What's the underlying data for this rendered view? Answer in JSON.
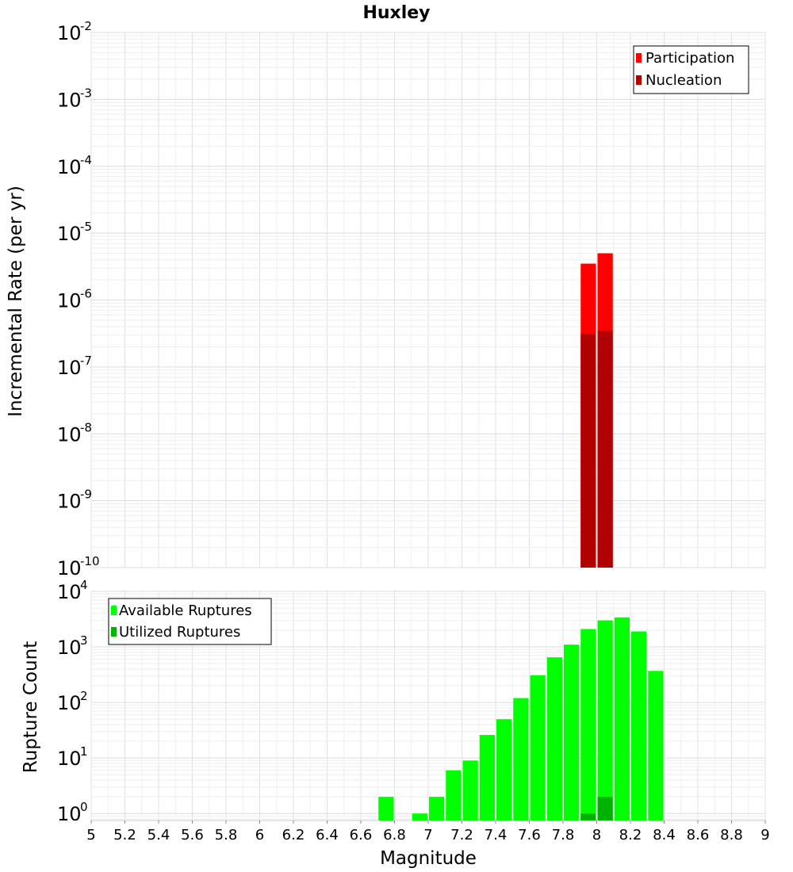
{
  "chart_data": [
    {
      "type": "bar",
      "panel": "top",
      "title": "Huxley",
      "xlabel": "",
      "ylabel": "Incremental Rate (per yr)",
      "yscale": "log",
      "ylim": [
        1e-10,
        0.01
      ],
      "xlim": [
        5,
        9
      ],
      "y_tick_exponents": [
        "-10",
        "-9",
        "-8",
        "-7",
        "-6",
        "-5",
        "-4",
        "-3",
        "-2"
      ],
      "grid": true,
      "legend_position": "top-right",
      "bar_width": 0.1,
      "series": [
        {
          "name": "Participation",
          "color": "#ff0000",
          "points": [
            {
              "x": 7.95,
              "y": 3.5e-06
            },
            {
              "x": 8.05,
              "y": 5e-06
            }
          ]
        },
        {
          "name": "Nucleation",
          "color": "#b00000",
          "points": [
            {
              "x": 7.95,
              "y": 3.1e-07
            },
            {
              "x": 8.05,
              "y": 3.5e-07
            }
          ]
        }
      ]
    },
    {
      "type": "bar",
      "panel": "bottom",
      "xlabel": "Magnitude",
      "ylabel": "Rupture Count",
      "yscale": "log",
      "ylim": [
        0.75,
        10000
      ],
      "xlim": [
        5,
        9
      ],
      "x_ticks": [
        "5",
        "5.2",
        "5.4",
        "5.6",
        "5.8",
        "6",
        "6.2",
        "6.4",
        "6.6",
        "6.8",
        "7",
        "7.2",
        "7.4",
        "7.6",
        "7.8",
        "8",
        "8.2",
        "8.4",
        "8.6",
        "8.8",
        "9"
      ],
      "y_tick_exponents": [
        "0",
        "1",
        "2",
        "3",
        "4"
      ],
      "grid": true,
      "legend_position": "top-left",
      "bar_width": 0.1,
      "series": [
        {
          "name": "Available Ruptures",
          "color": "#00ff00",
          "points": [
            {
              "x": 6.75,
              "y": 2
            },
            {
              "x": 6.95,
              "y": 1
            },
            {
              "x": 7.05,
              "y": 2
            },
            {
              "x": 7.15,
              "y": 6
            },
            {
              "x": 7.25,
              "y": 9
            },
            {
              "x": 7.35,
              "y": 26
            },
            {
              "x": 7.45,
              "y": 50
            },
            {
              "x": 7.55,
              "y": 120
            },
            {
              "x": 7.65,
              "y": 310
            },
            {
              "x": 7.75,
              "y": 650
            },
            {
              "x": 7.85,
              "y": 1100
            },
            {
              "x": 7.95,
              "y": 2100
            },
            {
              "x": 8.05,
              "y": 3000
            },
            {
              "x": 8.15,
              "y": 3400
            },
            {
              "x": 8.25,
              "y": 1900
            },
            {
              "x": 8.35,
              "y": 370
            }
          ]
        },
        {
          "name": "Utilized Ruptures",
          "color": "#00b200",
          "points": [
            {
              "x": 7.95,
              "y": 1
            },
            {
              "x": 8.05,
              "y": 2
            }
          ]
        }
      ]
    }
  ]
}
